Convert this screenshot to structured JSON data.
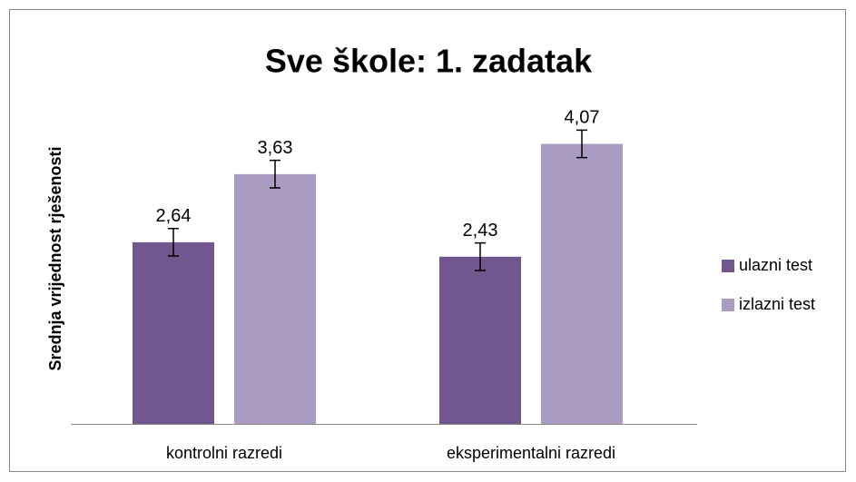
{
  "chart_data": {
    "type": "bar",
    "title": "Sve škole: 1. zadatak",
    "ylabel": "Srednja vrijednost rješenosti",
    "categories": [
      "kontrolni razredi",
      "eksperimentalni razredi"
    ],
    "series": [
      {
        "name": "ulazni test",
        "color": "#72578f",
        "values": [
          2.64,
          2.43
        ],
        "value_labels": [
          "2,64",
          "2,43"
        ],
        "errors": [
          0.2,
          0.2
        ]
      },
      {
        "name": "izlazni test",
        "color": "#a99bc1",
        "values": [
          3.63,
          4.07
        ],
        "value_labels": [
          "3,63",
          "4,07"
        ],
        "errors": [
          0.2,
          0.2
        ]
      }
    ],
    "ylim": [
      0,
      5
    ],
    "legend": "right"
  }
}
